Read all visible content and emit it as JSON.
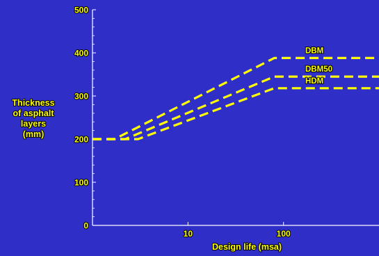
{
  "colors": {
    "background": "#2f2fc8",
    "axis": "#ffffff",
    "series": "#ffff00",
    "label_outline": "#000000"
  },
  "chart_data": {
    "type": "line",
    "xlabel": "Design life (msa)",
    "ylabel": [
      "Thickness",
      "of asphalt",
      "layers",
      "(mm)"
    ],
    "xscale": "log",
    "xlim": [
      1,
      1000
    ],
    "ylim": [
      0,
      500
    ],
    "xticks": [
      {
        "value": 10,
        "label": "10"
      },
      {
        "value": 100,
        "label": "100"
      }
    ],
    "yticks": [
      {
        "value": 0,
        "label": "0"
      },
      {
        "value": 100,
        "label": "100"
      },
      {
        "value": 200,
        "label": "200"
      },
      {
        "value": 300,
        "label": "300"
      },
      {
        "value": 400,
        "label": "400"
      },
      {
        "value": 500,
        "label": "500"
      }
    ],
    "grid": false,
    "line_style": "dashed",
    "series": [
      {
        "name": "DBM",
        "x": [
          1,
          1.7,
          80,
          1000
        ],
        "y": [
          200,
          200,
          388,
          388
        ]
      },
      {
        "name": "DBM50",
        "x": [
          1,
          2.2,
          80,
          1000
        ],
        "y": [
          200,
          200,
          345,
          345
        ]
      },
      {
        "name": "HDM",
        "x": [
          1,
          3.0,
          80,
          1000
        ],
        "y": [
          200,
          200,
          318,
          318
        ]
      }
    ]
  }
}
